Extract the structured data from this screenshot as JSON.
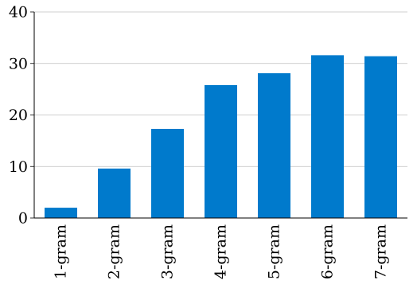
{
  "chart_data": {
    "type": "bar",
    "categories": [
      "1-gram",
      "2-gram",
      "3-gram",
      "4-gram",
      "5-gram",
      "6-gram",
      "7-gram"
    ],
    "values": [
      2.0,
      9.6,
      17.3,
      25.8,
      28.1,
      31.6,
      31.4
    ],
    "ylim": [
      0,
      40
    ],
    "yticks": [
      "0",
      "10",
      "20",
      "30",
      "40"
    ],
    "grid": true,
    "colors": {
      "bar": "#007ACC",
      "grid": "#BFBFBF",
      "axis": "#000000"
    }
  }
}
